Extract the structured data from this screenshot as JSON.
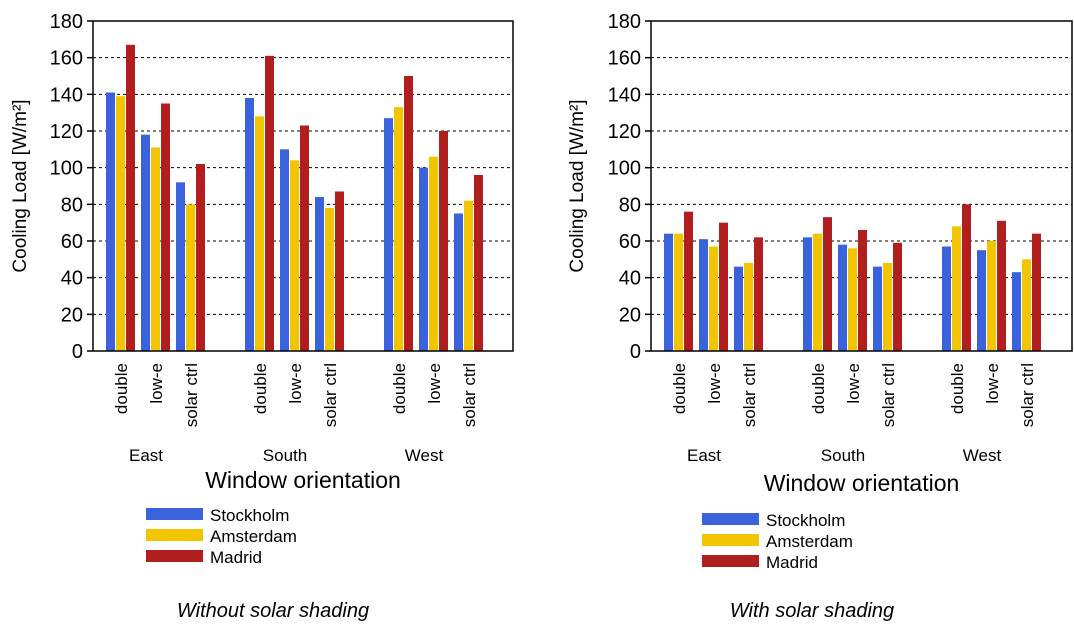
{
  "colors": {
    "Stockholm": "#3a62db",
    "Amsterdam": "#f2c500",
    "Madrid": "#b01e1e"
  },
  "chart_data": [
    {
      "type": "bar",
      "ylabel": "Cooling Load [W/m²]",
      "xlabel": "Window orientation",
      "ylim": [
        0,
        180
      ],
      "yticks": [
        0,
        20,
        40,
        60,
        80,
        100,
        120,
        140,
        160,
        180
      ],
      "grid": "horizontal dashed",
      "legend_position": "bottom-left",
      "groups": [
        "East",
        "South",
        "West"
      ],
      "categories": [
        "double",
        "low-e",
        "solar ctrl"
      ],
      "series": [
        {
          "name": "Stockholm",
          "values": [
            [
              141,
              118,
              92
            ],
            [
              138,
              110,
              84
            ],
            [
              127,
              100,
              75
            ]
          ]
        },
        {
          "name": "Amsterdam",
          "values": [
            [
              139,
              111,
              80
            ],
            [
              128,
              104,
              78
            ],
            [
              133,
              106,
              82
            ]
          ]
        },
        {
          "name": "Madrid",
          "values": [
            [
              167,
              135,
              102
            ],
            [
              161,
              123,
              87
            ],
            [
              150,
              120,
              96
            ]
          ]
        }
      ],
      "caption": "Without solar shading"
    },
    {
      "type": "bar",
      "ylabel": "Cooling Load [W/m²]",
      "xlabel": "Window orientation",
      "ylim": [
        0,
        180
      ],
      "yticks": [
        0,
        20,
        40,
        60,
        80,
        100,
        120,
        140,
        160,
        180
      ],
      "grid": "horizontal dashed",
      "legend_position": "bottom-left",
      "groups": [
        "East",
        "South",
        "West"
      ],
      "categories": [
        "double",
        "low-e",
        "solar ctrl"
      ],
      "series": [
        {
          "name": "Stockholm",
          "values": [
            [
              64,
              61,
              46
            ],
            [
              62,
              58,
              46
            ],
            [
              57,
              55,
              43
            ]
          ]
        },
        {
          "name": "Amsterdam",
          "values": [
            [
              64,
              57,
              48
            ],
            [
              64,
              56,
              48
            ],
            [
              68,
              60,
              50
            ]
          ]
        },
        {
          "name": "Madrid",
          "values": [
            [
              76,
              70,
              62
            ],
            [
              73,
              66,
              59
            ],
            [
              80,
              71,
              64
            ]
          ]
        }
      ],
      "caption": "With solar shading"
    }
  ]
}
